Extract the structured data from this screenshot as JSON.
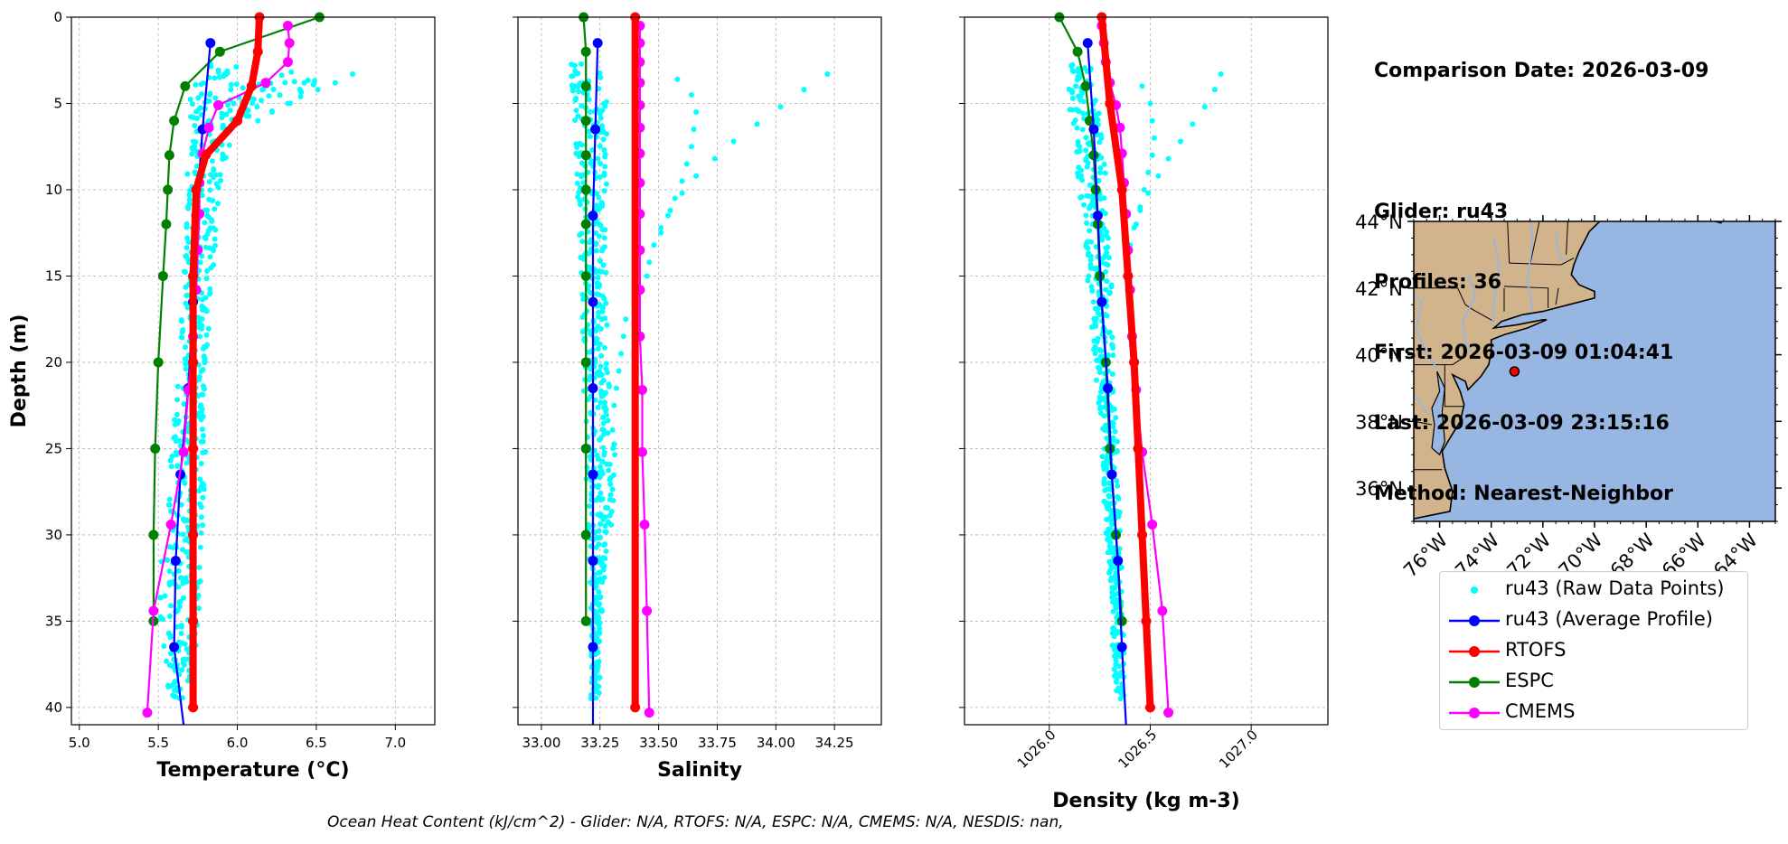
{
  "info": {
    "comparison_date": "Comparison Date: 2026-03-09",
    "glider": "Glider: ru43",
    "profiles": "Profiles: 36",
    "first": "First: 2026-03-09 01:04:41",
    "last": "Last: 2026-03-09 23:15:16",
    "method": "Method: Nearest-Neighbor"
  },
  "footer": "Ocean Heat Content (kJ/cm^2) - Glider: N/A,  RTOFS: N/A,  ESPC: N/A,  CMEMS: N/A,  NESDIS: nan,",
  "legend": [
    {
      "label": "ru43 (Raw Data Points)",
      "color": "#00ffff",
      "style": "point"
    },
    {
      "label": "ru43 (Average Profile)",
      "color": "#0000ff",
      "style": "line"
    },
    {
      "label": "RTOFS",
      "color": "#ff0000",
      "style": "line"
    },
    {
      "label": "ESPC",
      "color": "#008000",
      "style": "line"
    },
    {
      "label": "CMEMS",
      "color": "#ff00ff",
      "style": "line"
    }
  ],
  "chart_data": [
    {
      "type": "line",
      "id": "temperature",
      "xlabel": "Temperature (°C)",
      "ylabel": "Depth (m)",
      "xlim": [
        4.95,
        7.25
      ],
      "ylim": [
        41,
        0
      ],
      "xticks": [
        5.0,
        5.5,
        6.0,
        6.5,
        7.0
      ],
      "xtick_labels": [
        "5.0",
        "5.5",
        "6.0",
        "6.5",
        "7.0"
      ],
      "yticks": [
        0,
        5,
        10,
        15,
        20,
        25,
        30,
        35,
        40
      ],
      "ytick_labels": [
        "0",
        "5",
        "10",
        "15",
        "20",
        "25",
        "30",
        "35",
        "40"
      ],
      "grid": true,
      "series": [
        {
          "name": "ru43 (Average Profile)",
          "color": "#0000ff",
          "depth": [
            1.5,
            6.5,
            11.5,
            16.5,
            21.5,
            26.5,
            31.5,
            36.5,
            41
          ],
          "values": [
            5.83,
            5.78,
            5.74,
            5.72,
            5.69,
            5.64,
            5.61,
            5.6,
            5.66
          ]
        },
        {
          "name": "RTOFS",
          "color": "#ff0000",
          "thick": true,
          "depth": [
            0,
            2,
            4,
            6,
            8,
            10,
            15,
            20,
            25,
            30,
            35,
            40
          ],
          "values": [
            6.14,
            6.13,
            6.09,
            6.0,
            5.8,
            5.74,
            5.72,
            5.72,
            5.72,
            5.72,
            5.72,
            5.72
          ]
        },
        {
          "name": "ESPC",
          "color": "#008000",
          "depth": [
            0,
            2,
            4,
            6,
            8,
            10,
            12,
            15,
            20,
            25,
            30,
            35
          ],
          "values": [
            6.52,
            5.89,
            5.67,
            5.6,
            5.57,
            5.56,
            5.55,
            5.53,
            5.5,
            5.48,
            5.47,
            5.47
          ]
        },
        {
          "name": "CMEMS",
          "color": "#ff00ff",
          "depth": [
            0.5,
            1.5,
            2.6,
            3.8,
            5.1,
            6.4,
            7.9,
            9.6,
            11.4,
            13.5,
            15.8,
            18.5,
            21.6,
            25.2,
            29.4,
            34.4,
            40.3
          ],
          "values": [
            6.32,
            6.33,
            6.32,
            6.18,
            5.88,
            5.82,
            5.78,
            5.76,
            5.76,
            5.75,
            5.74,
            5.72,
            5.69,
            5.66,
            5.58,
            5.47,
            5.43
          ]
        }
      ],
      "raw_points": {
        "name": "ru43 (Raw Data Points)",
        "color": "#00ffff",
        "depth": [
          3,
          3.5,
          4,
          4.5,
          5,
          5.5,
          6,
          7,
          8,
          9,
          10,
          11,
          12,
          13,
          14,
          15,
          16,
          17,
          18,
          19,
          20,
          21,
          22,
          23,
          24,
          25,
          26,
          27,
          28,
          29,
          30,
          31,
          32,
          33,
          34,
          35,
          36,
          37,
          38,
          39
        ],
        "min": [
          5.76,
          5.74,
          5.72,
          5.71,
          5.7,
          5.7,
          5.69,
          5.69,
          5.68,
          5.68,
          5.68,
          5.67,
          5.67,
          5.67,
          5.66,
          5.66,
          5.65,
          5.65,
          5.64,
          5.64,
          5.63,
          5.62,
          5.61,
          5.6,
          5.59,
          5.58,
          5.57,
          5.56,
          5.55,
          5.54,
          5.53,
          5.53,
          5.52,
          5.52,
          5.51,
          5.51,
          5.52,
          5.53,
          5.55,
          5.56
        ],
        "max": [
          6.0,
          6.5,
          6.42,
          6.35,
          6.28,
          6.12,
          6.03,
          5.98,
          5.93,
          5.9,
          5.89,
          5.88,
          5.87,
          5.86,
          5.85,
          5.84,
          5.83,
          5.82,
          5.82,
          5.81,
          5.81,
          5.81,
          5.8,
          5.8,
          5.8,
          5.8,
          5.79,
          5.79,
          5.79,
          5.78,
          5.78,
          5.78,
          5.77,
          5.77,
          5.76,
          5.75,
          5.74,
          5.72,
          5.7,
          5.67
        ],
        "outliers": [
          [
            3.3,
            6.73
          ],
          [
            3.8,
            6.62
          ],
          [
            4.2,
            6.51
          ],
          [
            4.6,
            6.4
          ],
          [
            5.0,
            6.32
          ],
          [
            5.5,
            6.22
          ],
          [
            6.0,
            6.13
          ]
        ]
      }
    },
    {
      "type": "line",
      "id": "salinity",
      "xlabel": "Salinity",
      "xlim": [
        32.9,
        34.45
      ],
      "ylim": [
        41,
        0
      ],
      "xticks": [
        33.0,
        33.25,
        33.5,
        33.75,
        34.0,
        34.25
      ],
      "xtick_labels": [
        "33.00",
        "33.25",
        "33.50",
        "33.75",
        "34.00",
        "34.25"
      ],
      "yticks": [
        0,
        5,
        10,
        15,
        20,
        25,
        30,
        35,
        40
      ],
      "grid": true,
      "series": [
        {
          "name": "ru43 (Average Profile)",
          "color": "#0000ff",
          "depth": [
            1.5,
            6.5,
            11.5,
            16.5,
            21.5,
            26.5,
            31.5,
            36.5,
            41
          ],
          "values": [
            33.24,
            33.23,
            33.22,
            33.22,
            33.22,
            33.22,
            33.22,
            33.22,
            33.22
          ]
        },
        {
          "name": "RTOFS",
          "color": "#ff0000",
          "thick": true,
          "depth": [
            0,
            40
          ],
          "values": [
            33.4,
            33.4
          ]
        },
        {
          "name": "ESPC",
          "color": "#008000",
          "depth": [
            0,
            2,
            4,
            6,
            8,
            10,
            12,
            15,
            20,
            25,
            30,
            35
          ],
          "values": [
            33.18,
            33.19,
            33.19,
            33.19,
            33.19,
            33.19,
            33.19,
            33.19,
            33.19,
            33.19,
            33.19,
            33.19
          ]
        },
        {
          "name": "CMEMS",
          "color": "#ff00ff",
          "depth": [
            0.5,
            1.5,
            2.6,
            3.8,
            5.1,
            6.4,
            7.9,
            9.6,
            11.4,
            13.5,
            15.8,
            18.5,
            21.6,
            25.2,
            29.4,
            34.4,
            40.3
          ],
          "values": [
            33.42,
            33.42,
            33.42,
            33.42,
            33.42,
            33.42,
            33.42,
            33.42,
            33.42,
            33.42,
            33.42,
            33.42,
            33.43,
            33.43,
            33.44,
            33.45,
            33.46
          ]
        }
      ],
      "raw_points": {
        "name": "ru43 (Raw Data Points)",
        "color": "#00ffff",
        "depth": [
          3,
          4,
          5,
          6,
          7,
          8,
          9,
          10,
          11,
          12,
          13,
          14,
          15,
          16,
          17,
          18,
          19,
          20,
          21,
          22,
          23,
          24,
          25,
          26,
          27,
          28,
          29,
          30,
          31,
          32,
          33,
          34,
          35,
          36,
          37,
          38,
          39
        ],
        "min": [
          33.12,
          33.12,
          33.13,
          33.13,
          33.14,
          33.14,
          33.15,
          33.15,
          33.15,
          33.16,
          33.16,
          33.16,
          33.17,
          33.17,
          33.17,
          33.17,
          33.18,
          33.18,
          33.18,
          33.18,
          33.19,
          33.19,
          33.19,
          33.19,
          33.19,
          33.2,
          33.2,
          33.2,
          33.2,
          33.2,
          33.2,
          33.21,
          33.21,
          33.21,
          33.21,
          33.21,
          33.21
        ],
        "max": [
          33.27,
          33.28,
          33.28,
          33.28,
          33.28,
          33.28,
          33.28,
          33.28,
          33.28,
          33.28,
          33.28,
          33.28,
          33.28,
          33.28,
          33.28,
          33.28,
          33.28,
          33.28,
          33.29,
          33.3,
          33.3,
          33.31,
          33.32,
          33.32,
          33.32,
          33.31,
          33.3,
          33.29,
          33.28,
          33.27,
          33.26,
          33.26,
          33.25,
          33.25,
          33.25,
          33.25,
          33.25
        ],
        "outliers": [
          [
            3.3,
            34.22
          ],
          [
            4.2,
            34.12
          ],
          [
            5.2,
            34.02
          ],
          [
            6.2,
            33.92
          ],
          [
            7.2,
            33.82
          ],
          [
            8.2,
            33.74
          ],
          [
            9.2,
            33.66
          ],
          [
            10.2,
            33.6
          ],
          [
            11.2,
            33.55
          ],
          [
            12.2,
            33.51
          ],
          [
            13.2,
            33.48
          ],
          [
            14.2,
            33.46
          ],
          [
            15.0,
            33.45
          ],
          [
            3.6,
            33.58
          ],
          [
            4.5,
            33.64
          ],
          [
            5.5,
            33.66
          ],
          [
            6.5,
            33.65
          ],
          [
            7.5,
            33.64
          ],
          [
            8.5,
            33.62
          ],
          [
            9.5,
            33.6
          ],
          [
            10.5,
            33.57
          ],
          [
            11.5,
            33.54
          ],
          [
            12.5,
            33.51
          ],
          [
            17.5,
            33.36
          ],
          [
            18.5,
            33.35
          ],
          [
            19.5,
            33.34
          ],
          [
            20.5,
            33.33
          ],
          [
            21.5,
            33.32
          ],
          [
            22.5,
            33.31
          ]
        ]
      }
    },
    {
      "type": "line",
      "id": "density",
      "xlabel": "Density (kg m-3)",
      "xlim": [
        1025.58,
        1027.38
      ],
      "ylim": [
        41,
        0
      ],
      "xticks": [
        1026.0,
        1026.5,
        1027.0
      ],
      "xtick_labels": [
        "1026.0",
        "1026.5",
        "1027.0"
      ],
      "yticks": [
        0,
        5,
        10,
        15,
        20,
        25,
        30,
        35,
        40
      ],
      "grid": true,
      "series": [
        {
          "name": "ru43 (Average Profile)",
          "color": "#0000ff",
          "depth": [
            1.5,
            6.5,
            11.5,
            16.5,
            21.5,
            26.5,
            31.5,
            36.5,
            41
          ],
          "values": [
            1026.19,
            1026.22,
            1026.24,
            1026.26,
            1026.29,
            1026.31,
            1026.34,
            1026.36,
            1026.38
          ]
        },
        {
          "name": "RTOFS",
          "color": "#ff0000",
          "thick": true,
          "depth": [
            0,
            5,
            10,
            15,
            20,
            25,
            30,
            35,
            40
          ],
          "values": [
            1026.26,
            1026.3,
            1026.36,
            1026.39,
            1026.42,
            1026.44,
            1026.46,
            1026.48,
            1026.5
          ]
        },
        {
          "name": "ESPC",
          "color": "#008000",
          "depth": [
            0,
            2,
            4,
            6,
            8,
            10,
            12,
            15,
            20,
            25,
            30,
            35
          ],
          "values": [
            1026.05,
            1026.14,
            1026.18,
            1026.2,
            1026.22,
            1026.23,
            1026.24,
            1026.25,
            1026.28,
            1026.3,
            1026.33,
            1026.36
          ]
        },
        {
          "name": "CMEMS",
          "color": "#ff00ff",
          "depth": [
            0.5,
            1.5,
            2.6,
            3.8,
            5.1,
            6.4,
            7.9,
            9.6,
            11.4,
            13.5,
            15.8,
            18.5,
            21.6,
            25.2,
            29.4,
            34.4,
            40.3
          ],
          "values": [
            1026.26,
            1026.27,
            1026.28,
            1026.3,
            1026.33,
            1026.35,
            1026.36,
            1026.37,
            1026.38,
            1026.39,
            1026.4,
            1026.41,
            1026.43,
            1026.46,
            1026.51,
            1026.56,
            1026.59
          ]
        }
      ],
      "raw_points": {
        "name": "ru43 (Raw Data Points)",
        "color": "#00ffff",
        "depth": [
          3,
          4,
          5,
          6,
          7,
          8,
          9,
          10,
          11,
          12,
          13,
          14,
          15,
          16,
          17,
          18,
          19,
          20,
          21,
          22,
          23,
          24,
          25,
          26,
          27,
          28,
          29,
          30,
          31,
          32,
          33,
          34,
          35,
          36,
          37,
          38,
          39
        ],
        "min": [
          1026.08,
          1026.09,
          1026.1,
          1026.11,
          1026.12,
          1026.13,
          1026.14,
          1026.15,
          1026.16,
          1026.17,
          1026.17,
          1026.18,
          1026.19,
          1026.2,
          1026.21,
          1026.21,
          1026.22,
          1026.23,
          1026.23,
          1026.24,
          1026.24,
          1026.25,
          1026.26,
          1026.26,
          1026.27,
          1026.27,
          1026.28,
          1026.28,
          1026.29,
          1026.29,
          1026.3,
          1026.3,
          1026.31,
          1026.31,
          1026.32,
          1026.32,
          1026.33
        ],
        "max": [
          1026.22,
          1026.23,
          1026.24,
          1026.25,
          1026.26,
          1026.27,
          1026.28,
          1026.28,
          1026.29,
          1026.29,
          1026.3,
          1026.3,
          1026.3,
          1026.31,
          1026.31,
          1026.31,
          1026.32,
          1026.32,
          1026.32,
          1026.33,
          1026.33,
          1026.33,
          1026.34,
          1026.34,
          1026.34,
          1026.35,
          1026.35,
          1026.35,
          1026.35,
          1026.36,
          1026.36,
          1026.36,
          1026.36,
          1026.37,
          1026.37,
          1026.37,
          1026.37
        ],
        "outliers": [
          [
            3.3,
            1026.85
          ],
          [
            4.2,
            1026.82
          ],
          [
            5.2,
            1026.77
          ],
          [
            6.2,
            1026.71
          ],
          [
            7.2,
            1026.65
          ],
          [
            8.2,
            1026.59
          ],
          [
            9.2,
            1026.54
          ],
          [
            10.2,
            1026.49
          ],
          [
            11.2,
            1026.45
          ],
          [
            12.2,
            1026.42
          ],
          [
            13.2,
            1026.4
          ],
          [
            14.2,
            1026.39
          ],
          [
            4.0,
            1026.46
          ],
          [
            5.0,
            1026.5
          ],
          [
            6.0,
            1026.51
          ],
          [
            7.0,
            1026.52
          ],
          [
            8.0,
            1026.51
          ],
          [
            9.0,
            1026.49
          ],
          [
            10.0,
            1026.47
          ],
          [
            11.0,
            1026.45
          ],
          [
            12.0,
            1026.43
          ]
        ]
      }
    },
    {
      "type": "map",
      "id": "location-map",
      "lon_range": [
        -77.0,
        -63.0
      ],
      "lat_range": [
        35.0,
        44.0
      ],
      "xticks": [
        -76,
        -74,
        -72,
        -70,
        -68,
        -66,
        -64
      ],
      "xtick_labels": [
        "76°W",
        "74°W",
        "72°W",
        "70°W",
        "68°W",
        "66°W",
        "64°W"
      ],
      "yticks": [
        36,
        38,
        40,
        42,
        44
      ],
      "ytick_labels": [
        "36°N",
        "38°N",
        "40°N",
        "42°N",
        "44°N"
      ],
      "glider_position": {
        "lon": -73.1,
        "lat": 39.5,
        "color": "#ff0000"
      },
      "land_color": "#d2b48c",
      "ocean_color": "#97b6e1"
    }
  ]
}
